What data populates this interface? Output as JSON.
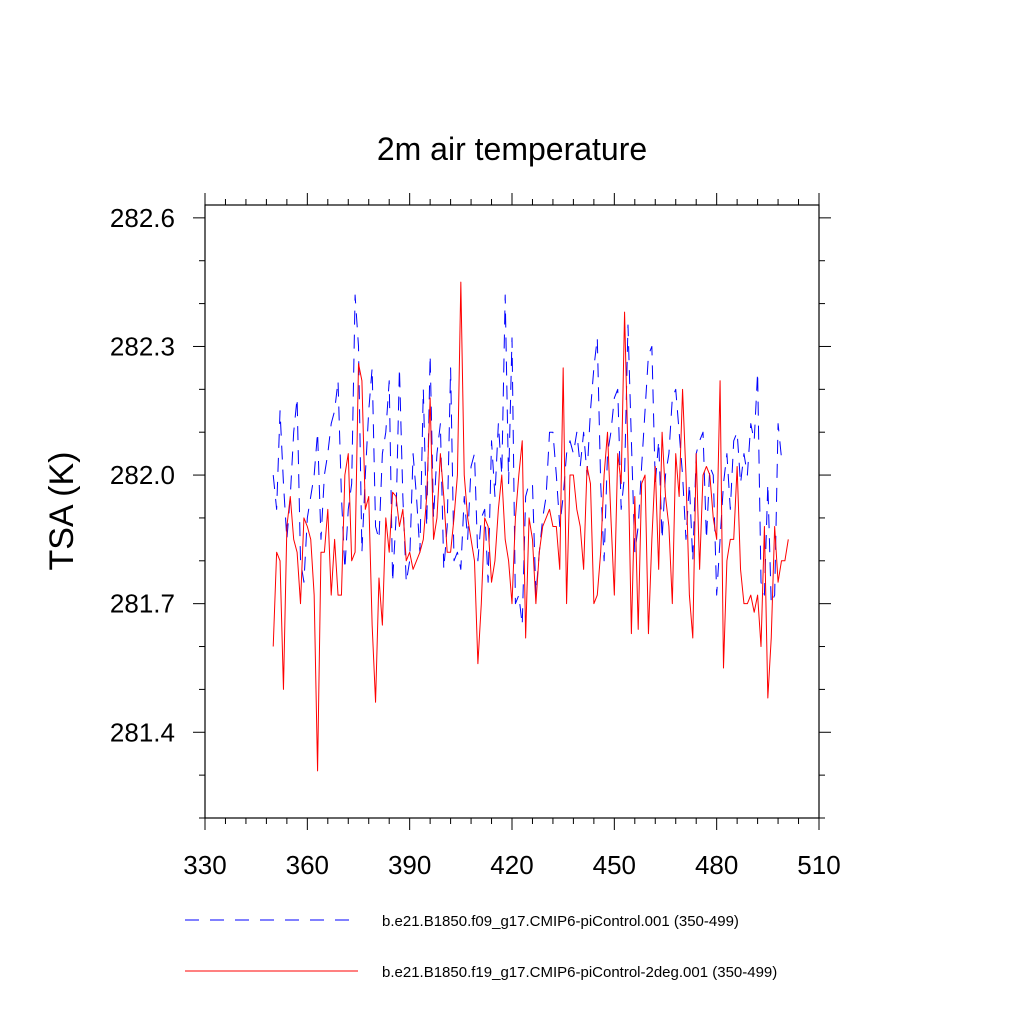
{
  "chart_data": {
    "type": "line",
    "title": "2m air temperature",
    "xlabel": "",
    "ylabel": "TSA  (K)",
    "xlim": [
      330,
      510
    ],
    "ylim": [
      281.2,
      282.63
    ],
    "xticks": [
      330,
      360,
      390,
      420,
      450,
      480,
      510
    ],
    "xtick_labels": [
      "330",
      "360",
      "390",
      "420",
      "450",
      "480",
      "510"
    ],
    "yticks": [
      281.4,
      281.7,
      282.0,
      282.3,
      282.6
    ],
    "ytick_labels": [
      "281.4",
      "281.7",
      "282.0",
      "282.3",
      "282.6"
    ],
    "legend_position": "bottom",
    "series": [
      {
        "name": "b.e21.B1850.f09_g17.CMIP6-piControl.001 (350-499)",
        "color": "#0000ff",
        "style": "dashed",
        "x_start": 350,
        "values": [
          282.0,
          281.92,
          282.15,
          281.98,
          281.85,
          281.95,
          282.1,
          282.18,
          281.8,
          281.75,
          281.9,
          281.95,
          282.0,
          282.1,
          281.85,
          282.0,
          282.05,
          282.12,
          282.15,
          282.22,
          281.95,
          281.78,
          281.92,
          281.98,
          282.42,
          282.3,
          281.82,
          282.0,
          282.15,
          282.25,
          281.88,
          281.85,
          282.05,
          282.1,
          282.22,
          281.75,
          281.9,
          282.25,
          281.95,
          281.75,
          281.8,
          282.05,
          281.95,
          281.82,
          282.2,
          281.88,
          282.28,
          281.9,
          282.05,
          282.12,
          281.78,
          281.88,
          282.25,
          281.8,
          281.82,
          281.78,
          281.95,
          281.85,
          282.02,
          282.05,
          281.8,
          281.9,
          281.92,
          281.75,
          282.08,
          281.95,
          282.12,
          282.0,
          282.42,
          281.98,
          282.32,
          281.7,
          281.72,
          281.65,
          281.95,
          281.98,
          281.98,
          281.72,
          281.82,
          281.9,
          281.95,
          282.1,
          282.1,
          282.0,
          281.88,
          281.95,
          282.05,
          282.08,
          282.05,
          282.1,
          282.02,
          282.1,
          282.0,
          282.15,
          282.25,
          282.32,
          281.98,
          281.8,
          282.05,
          282.1,
          282.18,
          282.2,
          281.92,
          282.0,
          282.35,
          282.08,
          281.82,
          281.88,
          282.02,
          282.15,
          282.28,
          282.3,
          281.98,
          282.08,
          281.85,
          282.0,
          282.05,
          282.18,
          282.2,
          282.1,
          282.0,
          281.85,
          281.98,
          281.8,
          282.05,
          282.08,
          282.1,
          281.85,
          282.02,
          282.0,
          281.72,
          281.85,
          281.98,
          282.05,
          281.92,
          282.08,
          282.1,
          281.98,
          282.05,
          282.0,
          282.12,
          282.08,
          282.24,
          281.75,
          281.72,
          281.98,
          281.7,
          281.72,
          282.12,
          282.04
        ]
      },
      {
        "name": "b.e21.B1850.f19_g17.CMIP6-piControl-2deg.001 (350-499)",
        "color": "#ff0000",
        "style": "solid",
        "x_start": 350,
        "values": [
          281.6,
          281.82,
          281.8,
          281.5,
          281.88,
          281.95,
          281.85,
          281.82,
          281.7,
          281.9,
          281.88,
          281.85,
          281.72,
          281.31,
          281.82,
          281.82,
          281.92,
          281.72,
          281.85,
          281.72,
          281.72,
          282.0,
          282.05,
          281.8,
          281.82,
          282.26,
          282.22,
          281.92,
          281.95,
          281.65,
          281.47,
          281.76,
          281.65,
          281.9,
          281.82,
          281.96,
          281.95,
          281.88,
          281.92,
          281.8,
          281.82,
          281.78,
          281.8,
          281.82,
          281.85,
          281.95,
          282.18,
          281.85,
          281.9,
          282.05,
          281.95,
          281.82,
          281.82,
          281.9,
          282.0,
          282.45,
          282.0,
          281.9,
          281.85,
          281.8,
          281.56,
          281.7,
          281.9,
          281.88,
          281.75,
          281.8,
          281.92,
          282.0,
          281.85,
          281.8,
          281.7,
          281.9,
          282.0,
          282.08,
          281.62,
          281.9,
          281.85,
          281.7,
          281.82,
          281.88,
          281.9,
          281.92,
          281.88,
          281.88,
          281.78,
          282.25,
          281.7,
          282.0,
          282.0,
          281.92,
          281.88,
          281.78,
          282.02,
          281.98,
          281.7,
          281.72,
          281.82,
          282.0,
          282.1,
          281.9,
          281.72,
          282.05,
          281.98,
          282.38,
          282.05,
          281.63,
          281.95,
          281.64,
          281.98,
          282.0,
          281.63,
          281.85,
          282.02,
          281.78,
          282.1,
          281.95,
          281.88,
          281.7,
          282.05,
          281.95,
          282.2,
          282.0,
          281.72,
          281.62,
          282.05,
          281.78,
          282.0,
          282.02,
          282.0,
          281.9,
          281.85,
          282.22,
          281.55,
          281.8,
          281.85,
          281.85,
          282.02,
          281.78,
          281.7,
          281.7,
          281.72,
          281.68,
          281.72,
          281.6,
          281.88,
          281.48,
          281.62,
          281.88,
          281.75,
          281.8,
          281.8,
          281.85
        ]
      }
    ]
  }
}
